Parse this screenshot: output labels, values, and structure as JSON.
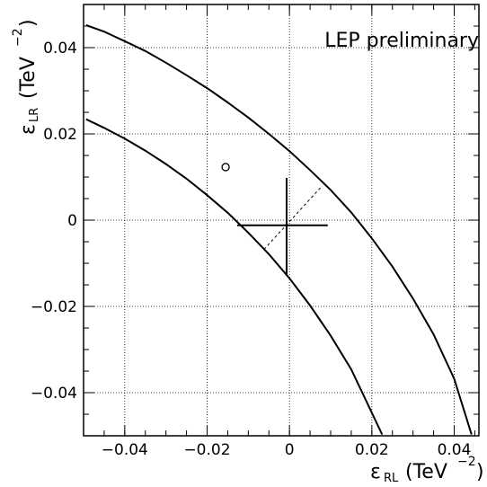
{
  "chart_data": {
    "type": "line",
    "title": "",
    "annotation": "LEP preliminary",
    "xlabel": {
      "symbol": "ε",
      "subscript": "RL",
      "unit_open": "(TeV",
      "unit_exp": "−2",
      "unit_close": ")"
    },
    "ylabel": {
      "symbol": "ε",
      "subscript": "LR",
      "unit_open": "(TeV",
      "unit_exp": "−2",
      "unit_close": ")"
    },
    "xlim": [
      -0.05,
      0.046
    ],
    "ylim": [
      -0.05,
      0.05
    ],
    "grid": true,
    "grid_style": "dotted",
    "x_ticks": [
      {
        "value": -0.04,
        "label": "−0.04"
      },
      {
        "value": -0.02,
        "label": "−0.02"
      },
      {
        "value": 0,
        "label": "0"
      },
      {
        "value": 0.02,
        "label": "0.02"
      },
      {
        "value": 0.04,
        "label": "0.04"
      }
    ],
    "y_ticks": [
      {
        "value": 0.04,
        "label": "0.04"
      },
      {
        "value": 0.02,
        "label": "0.02"
      },
      {
        "value": 0,
        "label": "0"
      },
      {
        "value": -0.02,
        "label": "−0.02"
      },
      {
        "value": -0.04,
        "label": "−0.04"
      }
    ],
    "series": [
      {
        "style": "solid",
        "x": [
          -0.0494,
          -0.045,
          -0.04,
          -0.035,
          -0.03,
          -0.025,
          -0.02,
          -0.015,
          -0.01,
          -0.005,
          0.0,
          0.005,
          0.01,
          0.015,
          0.02,
          0.025,
          0.03,
          0.035,
          0.04,
          0.0442
        ],
        "y": [
          0.0452,
          0.0437,
          0.0415,
          0.0392,
          0.0365,
          0.0336,
          0.0306,
          0.0273,
          0.0238,
          0.02,
          0.016,
          0.0116,
          0.007,
          0.0018,
          -0.0042,
          -0.0108,
          -0.0182,
          -0.0265,
          -0.0368,
          -0.0497
        ]
      },
      {
        "style": "solid",
        "x": [
          -0.0494,
          -0.045,
          -0.04,
          -0.035,
          -0.03,
          -0.025,
          -0.02,
          -0.015,
          -0.01,
          -0.005,
          0.0,
          0.005,
          0.01,
          0.015,
          0.0225
        ],
        "y": [
          0.0234,
          0.0214,
          0.0189,
          0.0161,
          0.013,
          0.0096,
          0.0058,
          0.0017,
          -0.0029,
          -0.0079,
          -0.0135,
          -0.0198,
          -0.0268,
          -0.0346,
          -0.0497
        ]
      }
    ],
    "error_cross": {
      "center": [
        -0.0007,
        -0.0012
      ],
      "x_range": [
        -0.0127,
        0.0093
      ],
      "y_range": [
        -0.0128,
        0.0098
      ],
      "correlated_axis": [
        [
          -0.0062,
          -0.0068
        ],
        [
          0.0078,
          0.0078
        ]
      ]
    },
    "markers": [
      {
        "x": -0.0155,
        "y": 0.0123,
        "symbol": "open-circle"
      }
    ]
  }
}
